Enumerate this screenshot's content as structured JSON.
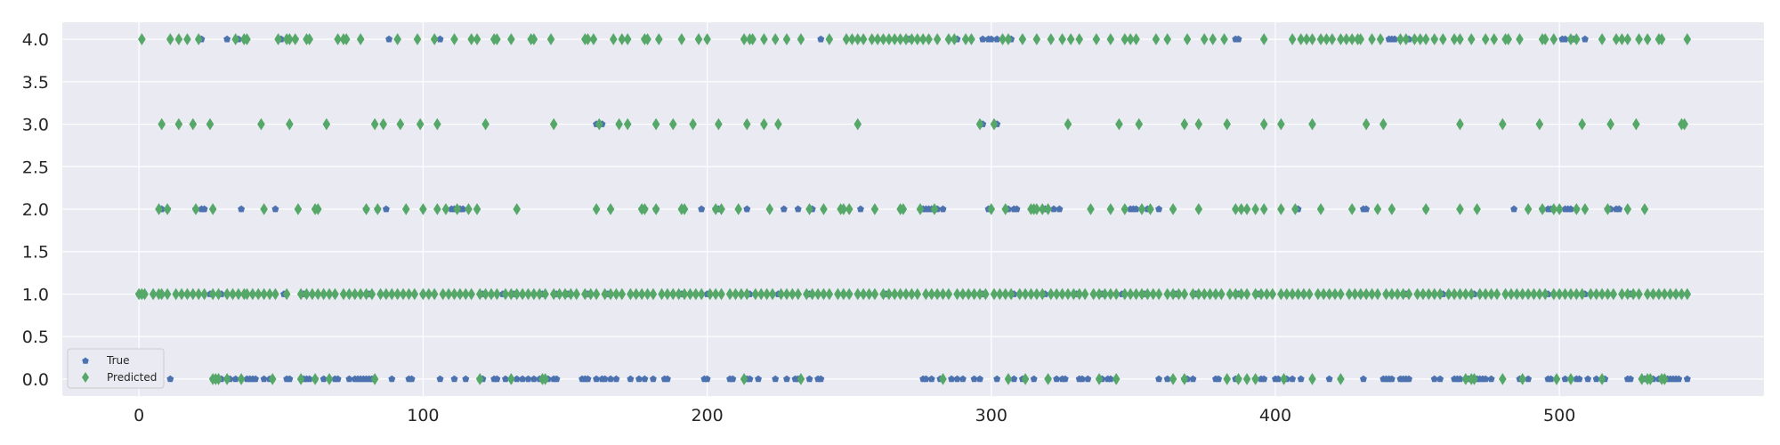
{
  "chart_data": {
    "type": "scatter",
    "title": "",
    "xlabel": "",
    "ylabel": "",
    "xlim": [
      -27,
      572
    ],
    "ylim": [
      -0.2,
      4.2
    ],
    "grid": true,
    "legend_placement": "lower-left",
    "x_ticks": [
      {
        "value": 0,
        "label": "0"
      },
      {
        "value": 100,
        "label": "100"
      },
      {
        "value": 200,
        "label": "200"
      },
      {
        "value": 300,
        "label": "300"
      },
      {
        "value": 400,
        "label": "400"
      },
      {
        "value": 500,
        "label": "500"
      }
    ],
    "y_ticks": [
      {
        "value": 0,
        "label": "0.0"
      },
      {
        "value": 0.5,
        "label": "0.5"
      },
      {
        "value": 1,
        "label": "1.0"
      },
      {
        "value": 1.5,
        "label": "1.5"
      },
      {
        "value": 2,
        "label": "2.0"
      },
      {
        "value": 2.5,
        "label": "2.5"
      },
      {
        "value": 3,
        "label": "3.0"
      },
      {
        "value": 3.5,
        "label": "3.5"
      },
      {
        "value": 4,
        "label": "4.0"
      }
    ],
    "colors": {
      "true": "#4c72b0",
      "predicted": "#55a868",
      "background": "#eaeaf2",
      "grid": "#ffffff"
    },
    "series": [
      {
        "name": "True",
        "marker": "pentagon",
        "levels": [
          {
            "y": 0,
            "x": [
              11,
              26,
              28,
              29,
              32,
              34,
              38,
              39,
              40,
              41,
              44,
              46,
              52,
              53,
              58,
              59,
              60,
              62,
              65,
              69,
              70,
              74,
              76,
              77,
              78,
              79,
              80,
              81,
              82,
              89,
              95,
              96,
              106,
              111,
              115,
              120,
              121,
              125,
              126,
              129,
              133,
              135,
              137,
              139,
              141,
              142,
              143,
              144,
              146,
              147,
              156,
              157,
              158,
              161,
              163,
              164,
              166,
              168,
              173,
              176,
              178,
              181,
              185,
              186,
              199,
              200,
              208,
              209,
              214,
              215,
              218,
              224,
              228,
              231,
              232,
              236,
              239,
              240,
              276,
              277,
              279,
              282,
              286,
              288,
              290,
              294,
              296,
              302,
              308,
              311,
              315,
              320,
              323,
              325,
              326,
              331,
              332,
              334,
              339,
              341,
              342,
              359,
              362,
              368,
              369,
              371,
              379,
              380,
              386,
              387,
              393,
              395,
              396,
              400,
              401,
              404,
              406,
              409,
              419,
              431,
              438,
              439,
              440,
              441,
              444,
              445,
              446,
              447,
              456,
              458,
              463,
              464,
              465,
              468,
              470,
              471,
              472,
              473,
              474,
              476,
              486,
              487,
              489,
              496,
              497,
              502,
              506,
              507,
              510,
              513,
              515,
              516,
              524,
              525,
              530,
              531,
              532,
              533,
              535,
              537,
              538,
              539,
              540,
              541,
              542,
              545
            ]
          },
          {
            "y": 1,
            "x": [
              0,
              8,
              17,
              25,
              29,
              33,
              42,
              51,
              58,
              69,
              81,
              87,
              100,
              113,
              121,
              124,
              128,
              132,
              135,
              142,
              147,
              151,
              158,
              165,
              175,
              191,
              200,
              212,
              215,
              225,
              236,
              250,
              263,
              281,
              290,
              297,
              308,
              319,
              330,
              339,
              346,
              354,
              365,
              372,
              379,
              387,
              394,
              410,
              419,
              430,
              439,
              446,
              459,
              470,
              485,
              496,
              509,
              517,
              525,
              533,
              541
            ]
          },
          {
            "y": 2,
            "x": [
              8,
              10,
              20,
              22,
              23,
              36,
              48,
              80,
              84,
              87,
              110,
              111,
              112,
              113,
              114,
              177,
              178,
              182,
              198,
              203,
              204,
              214,
              227,
              232,
              237,
              254,
              276,
              277,
              278,
              279,
              281,
              283,
              299,
              306,
              308,
              309,
              319,
              322,
              324,
              349,
              350,
              351,
              355,
              359,
              408,
              431,
              432,
              453,
              484,
              494,
              496,
              497,
              500,
              502,
              503,
              504,
              506,
              517,
              518,
              520,
              521
            ]
          },
          {
            "y": 3,
            "x": [
              161,
              163,
              297,
              302
            ]
          },
          {
            "y": 4,
            "x": [
              22,
              31,
              35,
              50,
              55,
              88,
              106,
              178,
              240,
              271,
              288,
              297,
              299,
              300,
              302,
              307,
              386,
              387,
              440,
              441,
              442,
              447,
              456,
              501,
              502,
              505,
              509
            ]
          }
        ]
      },
      {
        "name": "Predicted",
        "marker": "diamond",
        "levels": [
          {
            "y": 0,
            "x": [
              26,
              27,
              28,
              31,
              36,
              47,
              57,
              62,
              67,
              83,
              120,
              131,
              142,
              143,
              213,
              233,
              283,
              306,
              312,
              320,
              338,
              344,
              364,
              368,
              383,
              387,
              390,
              393,
              403,
              413,
              423,
              467,
              469,
              470,
              480,
              487,
              499,
              504,
              515,
              529,
              531,
              532,
              536,
              537
            ]
          },
          {
            "y": 1,
            "x": [
              0,
              1,
              2,
              5,
              7,
              8,
              10,
              13,
              15,
              17,
              19,
              21,
              23,
              26,
              28,
              31,
              33,
              35,
              37,
              38,
              40,
              42,
              44,
              46,
              48,
              52,
              57,
              59,
              61,
              63,
              65,
              67,
              69,
              72,
              74,
              76,
              78,
              80,
              82,
              85,
              87,
              89,
              91,
              93,
              95,
              97,
              100,
              102,
              104,
              107,
              109,
              111,
              113,
              115,
              117,
              120,
              122,
              124,
              126,
              129,
              131,
              133,
              135,
              137,
              139,
              141,
              143,
              146,
              148,
              150,
              152,
              154,
              157,
              159,
              161,
              164,
              166,
              168,
              170,
              173,
              175,
              177,
              179,
              181,
              184,
              186,
              188,
              190,
              192,
              194,
              196,
              198,
              201,
              203,
              205,
              208,
              210,
              212,
              214,
              217,
              219,
              221,
              223,
              226,
              228,
              230,
              232,
              235,
              237,
              239,
              241,
              243,
              246,
              248,
              250,
              253,
              255,
              257,
              259,
              262,
              264,
              266,
              268,
              270,
              272,
              274,
              277,
              279,
              281,
              283,
              285,
              288,
              290,
              292,
              294,
              296,
              298,
              301,
              303,
              305,
              307,
              310,
              312,
              314,
              316,
              318,
              321,
              323,
              325,
              327,
              329,
              331,
              333,
              336,
              338,
              340,
              342,
              344,
              347,
              349,
              351,
              353,
              355,
              357,
              359,
              362,
              364,
              366,
              368,
              371,
              373,
              375,
              377,
              379,
              381,
              384,
              386,
              388,
              390,
              393,
              395,
              397,
              399,
              402,
              404,
              406,
              408,
              410,
              412,
              415,
              417,
              419,
              421,
              423,
              426,
              428,
              430,
              432,
              434,
              436,
              439,
              441,
              443,
              445,
              447,
              450,
              452,
              454,
              456,
              458,
              461,
              463,
              465,
              467,
              469,
              472,
              474,
              476,
              478,
              481,
              483,
              485,
              487,
              489,
              491,
              493,
              495,
              498,
              500,
              502,
              504,
              506,
              508,
              511,
              513,
              515,
              517,
              519,
              522,
              524,
              526,
              528,
              531,
              533,
              535,
              537,
              539,
              541,
              543,
              545
            ]
          },
          {
            "y": 2,
            "x": [
              7,
              10,
              20,
              26,
              44,
              56,
              62,
              63,
              80,
              84,
              94,
              100,
              105,
              108,
              112,
              116,
              119,
              133,
              161,
              166,
              177,
              178,
              182,
              191,
              192,
              203,
              205,
              211,
              222,
              236,
              241,
              247,
              248,
              250,
              259,
              268,
              269,
              275,
              280,
              300,
              305,
              314,
              315,
              316,
              318,
              320,
              335,
              342,
              347,
              353,
              356,
              364,
              373,
              386,
              388,
              390,
              393,
              396,
              402,
              407,
              416,
              427,
              436,
              441,
              453,
              465,
              471,
              489,
              494,
              498,
              500,
              506,
              509,
              517,
              524,
              530
            ]
          },
          {
            "y": 3,
            "x": [
              8,
              14,
              19,
              25,
              43,
              53,
              66,
              83,
              86,
              92,
              99,
              105,
              122,
              146,
              162,
              169,
              172,
              182,
              188,
              195,
              204,
              214,
              220,
              225,
              253,
              296,
              301,
              327,
              345,
              352,
              368,
              373,
              383,
              396,
              402,
              413,
              432,
              438,
              465,
              480,
              493,
              508,
              518,
              527,
              543,
              544
            ]
          },
          {
            "y": 4,
            "x": [
              1,
              11,
              14,
              17,
              21,
              34,
              37,
              38,
              49,
              52,
              53,
              55,
              59,
              60,
              70,
              72,
              73,
              78,
              91,
              98,
              104,
              111,
              117,
              119,
              125,
              126,
              131,
              138,
              139,
              145,
              157,
              158,
              160,
              167,
              170,
              172,
              178,
              179,
              183,
              191,
              197,
              200,
              213,
              215,
              216,
              220,
              224,
              228,
              233,
              243,
              249,
              251,
              253,
              255,
              258,
              260,
              262,
              264,
              266,
              268,
              270,
              272,
              274,
              276,
              278,
              281,
              285,
              287,
              291,
              293,
              304,
              306,
              311,
              316,
              321,
              325,
              328,
              331,
              337,
              342,
              347,
              349,
              351,
              358,
              362,
              369,
              375,
              378,
              382,
              396,
              406,
              409,
              411,
              413,
              416,
              418,
              420,
              423,
              425,
              427,
              429,
              430,
              434,
              437,
              444,
              446,
              449,
              451,
              453,
              456,
              459,
              463,
              465,
              469,
              474,
              477,
              481,
              482,
              486,
              494,
              495,
              498,
              504,
              506,
              515,
              520,
              522,
              524,
              528,
              531,
              535,
              536,
              545
            ]
          }
        ]
      }
    ]
  }
}
